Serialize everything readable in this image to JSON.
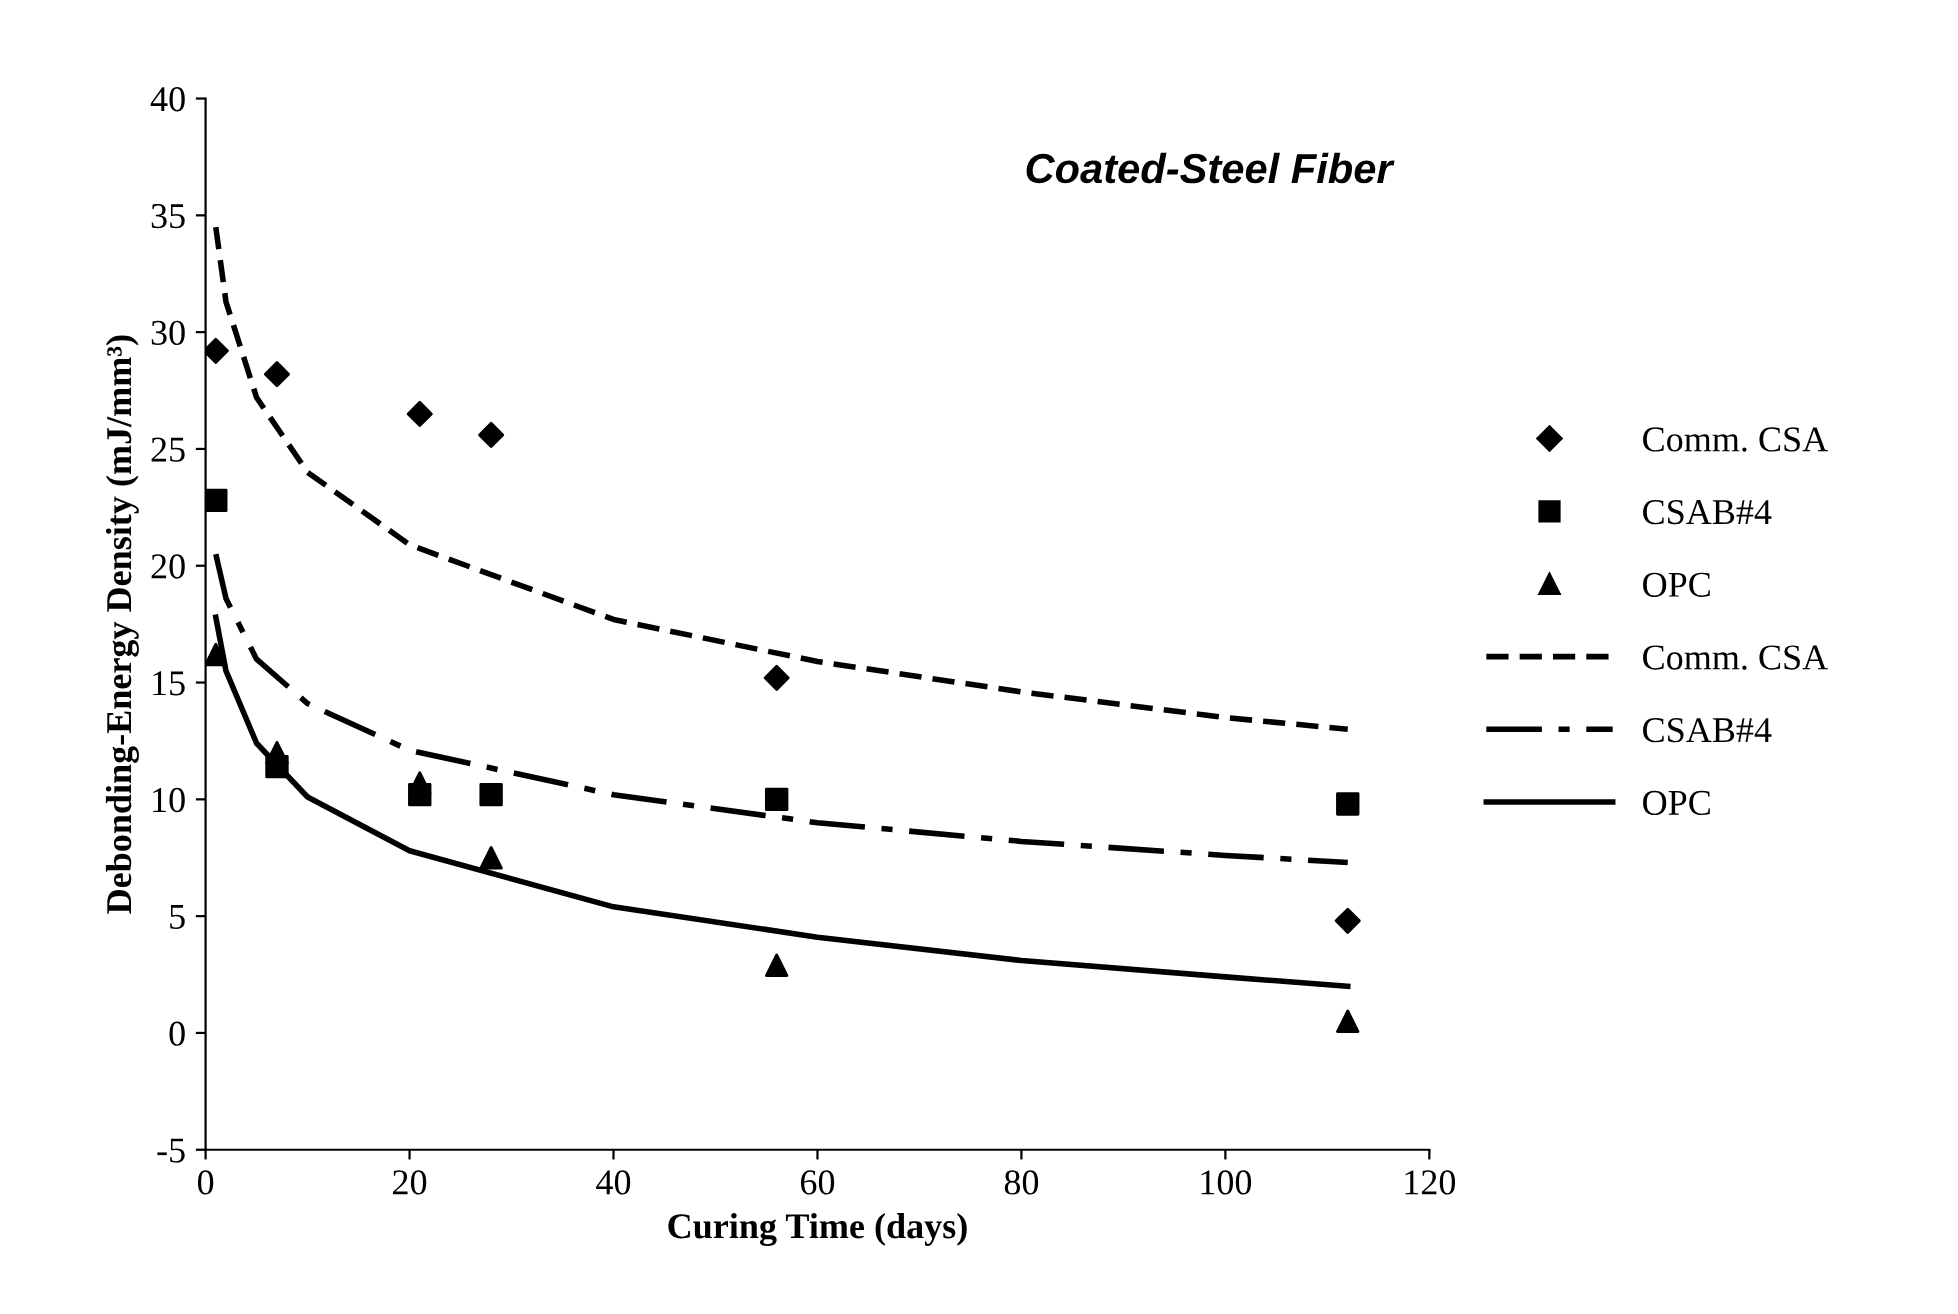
{
  "chart_data": {
    "type": "scatter",
    "title": "Coated-Steel Fiber",
    "xlabel": "Curing Time (days)",
    "ylabel": "Debonding-Energy Density (mJ/mm³)",
    "xlim": [
      0,
      120
    ],
    "xticks": [
      0,
      20,
      40,
      60,
      80,
      100,
      120
    ],
    "ylim": [
      -5,
      40
    ],
    "yticks": [
      -5,
      0,
      5,
      10,
      15,
      20,
      25,
      30,
      35,
      40
    ],
    "grid": false,
    "legend": "right",
    "series": [
      {
        "name": "Comm. CSA",
        "marker": "diamond",
        "color": "#000000",
        "x": [
          1,
          7,
          21,
          28,
          56,
          112
        ],
        "values": [
          29.2,
          28.2,
          26.5,
          25.6,
          15.2,
          4.8
        ]
      },
      {
        "name": "CSAB#4",
        "marker": "square",
        "color": "#000000",
        "x": [
          1,
          7,
          21,
          28,
          56,
          112
        ],
        "values": [
          22.8,
          11.4,
          10.2,
          10.2,
          10.0,
          9.8
        ]
      },
      {
        "name": "OPC",
        "marker": "triangle",
        "color": "#000000",
        "x": [
          1,
          7,
          21,
          28,
          56,
          112
        ],
        "values": [
          16.2,
          12.0,
          10.7,
          7.5,
          2.9,
          0.5
        ]
      },
      {
        "name": "Comm. CSA",
        "type": "line",
        "line_style": "dashed",
        "color": "#000000",
        "x": [
          1,
          2,
          5,
          10,
          20,
          40,
          60,
          80,
          100,
          112
        ],
        "values": [
          34.5,
          31.3,
          27.2,
          24.0,
          20.9,
          17.7,
          15.9,
          14.6,
          13.5,
          13.0
        ]
      },
      {
        "name": "CSAB#4",
        "type": "line",
        "line_style": "dashdot",
        "color": "#000000",
        "x": [
          1,
          2,
          5,
          10,
          20,
          40,
          60,
          80,
          100,
          112
        ],
        "values": [
          20.5,
          18.6,
          16.0,
          14.1,
          12.1,
          10.2,
          9.0,
          8.2,
          7.6,
          7.3
        ]
      },
      {
        "name": "OPC",
        "type": "line",
        "line_style": "solid",
        "color": "#000000",
        "x": [
          1,
          2,
          5,
          10,
          20,
          40,
          60,
          80,
          100,
          112
        ],
        "values": [
          17.8,
          15.5,
          12.4,
          10.1,
          7.8,
          5.4,
          4.1,
          3.1,
          2.4,
          2.0
        ]
      }
    ]
  }
}
